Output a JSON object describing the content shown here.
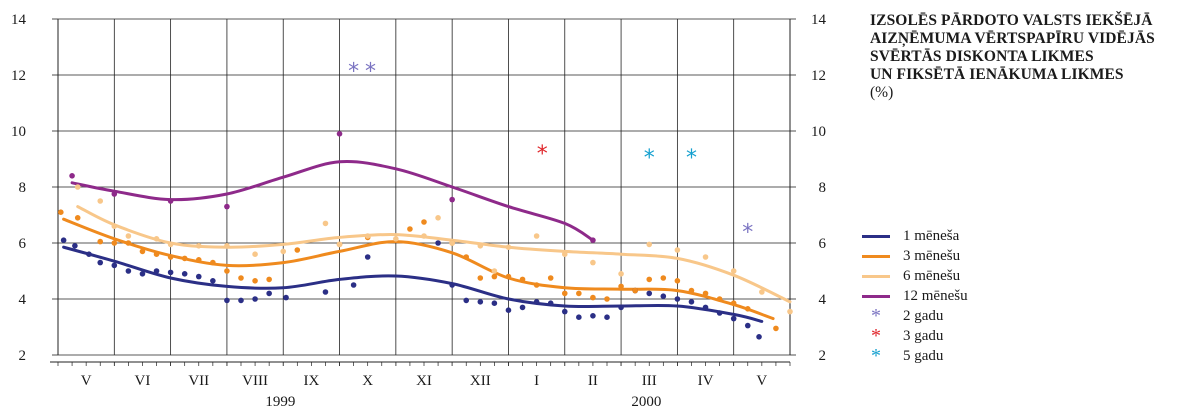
{
  "chart_data": {
    "type": "line",
    "title_lines": [
      "IZSOLĒS PĀRDOTO VALSTS IEKŠĒJĀ",
      "AIZŅĒMUMA VĒRTSPAPĪRU VIDĒJĀS",
      "SVĒRTĀS DISKONTA LIKMES",
      "UN FIKSĒTĀ IENĀKUMA LIKMES"
    ],
    "unit_label": "(%)",
    "ylim": [
      2,
      14
    ],
    "y_ticks": [
      "2",
      "4",
      "6",
      "8",
      "10",
      "12",
      "14"
    ],
    "months": [
      "V",
      "VI",
      "VII",
      "VIII",
      "IX",
      "X",
      "XI",
      "XII",
      "I",
      "II",
      "III",
      "IV",
      "V"
    ],
    "years": [
      "1999",
      "2000"
    ],
    "grid": true,
    "legend_position": "right",
    "series": [
      {
        "name": "1 mēneša",
        "color": "#2b2f86",
        "points": [
          [
            0.1,
            6.1
          ],
          [
            0.3,
            5.9
          ],
          [
            0.55,
            5.6
          ],
          [
            0.75,
            5.3
          ],
          [
            1.0,
            5.2
          ],
          [
            1.25,
            5.0
          ],
          [
            1.5,
            4.9
          ],
          [
            1.75,
            5.0
          ],
          [
            2.0,
            4.95
          ],
          [
            2.25,
            4.9
          ],
          [
            2.5,
            4.8
          ],
          [
            2.75,
            4.65
          ],
          [
            3.0,
            3.95
          ],
          [
            3.25,
            3.95
          ],
          [
            3.5,
            4.0
          ],
          [
            3.75,
            4.2
          ],
          [
            4.05,
            4.05
          ],
          [
            4.75,
            4.25
          ],
          [
            5.25,
            4.5
          ],
          [
            5.5,
            5.5
          ],
          [
            6.75,
            6.0
          ],
          [
            7.0,
            4.5
          ],
          [
            7.25,
            3.95
          ],
          [
            7.5,
            3.9
          ],
          [
            7.75,
            3.85
          ],
          [
            8.0,
            3.6
          ],
          [
            8.25,
            3.7
          ],
          [
            8.5,
            3.9
          ],
          [
            8.75,
            3.85
          ],
          [
            9.0,
            3.55
          ],
          [
            9.25,
            3.35
          ],
          [
            9.5,
            3.4
          ],
          [
            9.75,
            3.35
          ],
          [
            10.0,
            3.7
          ],
          [
            10.25,
            4.3
          ],
          [
            10.5,
            4.2
          ],
          [
            10.75,
            4.1
          ],
          [
            11.0,
            4.0
          ],
          [
            11.25,
            3.9
          ],
          [
            11.5,
            3.7
          ],
          [
            11.75,
            3.5
          ],
          [
            12.0,
            3.3
          ],
          [
            12.25,
            3.05
          ],
          [
            12.45,
            2.65
          ]
        ],
        "trend": [
          [
            0.1,
            5.85
          ],
          [
            1.0,
            5.35
          ],
          [
            2.0,
            4.75
          ],
          [
            3.0,
            4.45
          ],
          [
            4.0,
            4.4
          ],
          [
            5.0,
            4.7
          ],
          [
            6.0,
            4.82
          ],
          [
            7.0,
            4.55
          ],
          [
            8.0,
            4.0
          ],
          [
            9.0,
            3.75
          ],
          [
            10.0,
            3.75
          ],
          [
            11.0,
            3.75
          ],
          [
            12.0,
            3.45
          ],
          [
            12.5,
            3.2
          ]
        ]
      },
      {
        "name": "3 mēnešu",
        "color": "#ef8a1e",
        "points": [
          [
            0.05,
            7.1
          ],
          [
            0.35,
            6.9
          ],
          [
            0.75,
            6.05
          ],
          [
            1.0,
            6.0
          ],
          [
            1.25,
            6.0
          ],
          [
            1.5,
            5.7
          ],
          [
            1.75,
            5.6
          ],
          [
            2.0,
            5.5
          ],
          [
            2.25,
            5.45
          ],
          [
            2.5,
            5.4
          ],
          [
            2.75,
            5.3
          ],
          [
            3.0,
            5.0
          ],
          [
            3.25,
            4.75
          ],
          [
            3.5,
            4.65
          ],
          [
            3.75,
            4.7
          ],
          [
            4.25,
            5.75
          ],
          [
            5.0,
            5.95
          ],
          [
            5.5,
            6.2
          ],
          [
            6.25,
            6.5
          ],
          [
            6.5,
            6.75
          ],
          [
            7.0,
            6.0
          ],
          [
            7.25,
            5.5
          ],
          [
            7.5,
            4.75
          ],
          [
            7.75,
            4.8
          ],
          [
            8.0,
            4.8
          ],
          [
            8.25,
            4.7
          ],
          [
            8.5,
            4.5
          ],
          [
            8.75,
            4.75
          ],
          [
            9.0,
            4.2
          ],
          [
            9.25,
            4.2
          ],
          [
            9.5,
            4.05
          ],
          [
            9.75,
            4.0
          ],
          [
            10.0,
            4.45
          ],
          [
            10.25,
            4.3
          ],
          [
            10.5,
            4.7
          ],
          [
            10.75,
            4.75
          ],
          [
            11.0,
            4.65
          ],
          [
            11.25,
            4.3
          ],
          [
            11.5,
            4.2
          ],
          [
            11.75,
            4.0
          ],
          [
            12.0,
            3.85
          ],
          [
            12.25,
            3.65
          ],
          [
            12.75,
            2.95
          ]
        ],
        "trend": [
          [
            0.1,
            6.85
          ],
          [
            1.0,
            6.15
          ],
          [
            2.0,
            5.55
          ],
          [
            3.0,
            5.2
          ],
          [
            4.0,
            5.3
          ],
          [
            5.0,
            5.7
          ],
          [
            6.0,
            6.05
          ],
          [
            7.0,
            5.65
          ],
          [
            8.0,
            4.75
          ],
          [
            9.0,
            4.4
          ],
          [
            10.0,
            4.35
          ],
          [
            11.0,
            4.3
          ],
          [
            12.0,
            3.8
          ],
          [
            12.7,
            3.3
          ]
        ]
      },
      {
        "name": "6 mēnešu",
        "color": "#f8c78a",
        "points": [
          [
            0.35,
            8.0
          ],
          [
            0.75,
            7.5
          ],
          [
            1.0,
            6.6
          ],
          [
            1.25,
            6.25
          ],
          [
            1.75,
            6.15
          ],
          [
            2.0,
            5.95
          ],
          [
            2.5,
            5.9
          ],
          [
            3.0,
            5.9
          ],
          [
            3.5,
            5.6
          ],
          [
            4.0,
            5.7
          ],
          [
            4.75,
            6.7
          ],
          [
            5.0,
            5.95
          ],
          [
            5.5,
            6.25
          ],
          [
            6.0,
            6.15
          ],
          [
            6.5,
            6.25
          ],
          [
            6.75,
            6.9
          ],
          [
            7.0,
            6.0
          ],
          [
            7.5,
            5.9
          ],
          [
            7.75,
            5.0
          ],
          [
            8.0,
            5.85
          ],
          [
            8.5,
            6.25
          ],
          [
            9.0,
            5.6
          ],
          [
            9.5,
            5.3
          ],
          [
            10.0,
            4.9
          ],
          [
            10.5,
            5.95
          ],
          [
            11.0,
            5.75
          ],
          [
            11.5,
            5.5
          ],
          [
            12.0,
            5.0
          ],
          [
            12.5,
            4.25
          ],
          [
            13.0,
            3.55
          ]
        ],
        "trend": [
          [
            0.35,
            7.3
          ],
          [
            1.0,
            6.65
          ],
          [
            2.0,
            6.0
          ],
          [
            3.0,
            5.85
          ],
          [
            4.0,
            5.95
          ],
          [
            5.0,
            6.2
          ],
          [
            6.0,
            6.3
          ],
          [
            7.0,
            6.1
          ],
          [
            8.0,
            5.85
          ],
          [
            9.0,
            5.7
          ],
          [
            10.0,
            5.6
          ],
          [
            11.0,
            5.45
          ],
          [
            12.0,
            4.85
          ],
          [
            13.0,
            3.9
          ]
        ]
      },
      {
        "name": "12 mēnešu",
        "color": "#8e2a8a",
        "points": [
          [
            0.25,
            8.4
          ],
          [
            1.0,
            7.75
          ],
          [
            2.0,
            7.5
          ],
          [
            3.0,
            7.3
          ],
          [
            5.0,
            9.9
          ],
          [
            7.0,
            7.55
          ],
          [
            9.5,
            6.1
          ]
        ],
        "trend": [
          [
            0.25,
            8.15
          ],
          [
            1.0,
            7.85
          ],
          [
            2.0,
            7.55
          ],
          [
            3.0,
            7.75
          ],
          [
            4.0,
            8.35
          ],
          [
            5.0,
            8.9
          ],
          [
            6.0,
            8.65
          ],
          [
            7.0,
            8.0
          ],
          [
            8.0,
            7.3
          ],
          [
            9.0,
            6.7
          ],
          [
            9.5,
            6.1
          ]
        ]
      }
    ],
    "star_series": [
      {
        "name": "2 gadu",
        "color": "#7b74c2",
        "points": [
          [
            5.25,
            12.2
          ],
          [
            5.55,
            12.2
          ],
          [
            12.25,
            6.45
          ]
        ]
      },
      {
        "name": "3 gadu",
        "color": "#e0262b",
        "points": [
          [
            8.6,
            9.25
          ]
        ]
      },
      {
        "name": "5 gadu",
        "color": "#14a0cf",
        "points": [
          [
            10.5,
            9.1
          ],
          [
            11.25,
            9.1
          ]
        ]
      }
    ]
  }
}
